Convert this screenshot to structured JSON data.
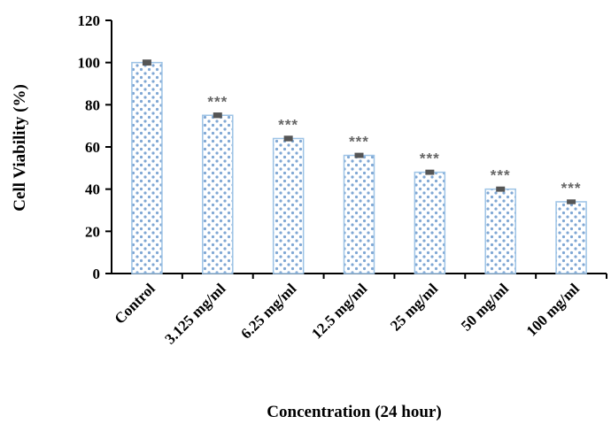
{
  "chart_data": {
    "type": "bar",
    "categories": [
      "Control",
      "3.125 mg/ml",
      "6.25 mg/ml",
      "12.5 mg/ml",
      "25 mg/ml",
      "50 mg/ml",
      "100 mg/ml"
    ],
    "values": [
      100,
      75,
      64,
      56,
      48,
      40,
      34
    ],
    "errors": [
      0.8,
      0.7,
      0.7,
      0.6,
      0.6,
      0.6,
      0.5
    ],
    "annotations": [
      "",
      "***",
      "***",
      "***",
      "***",
      "***",
      "***"
    ],
    "xlabel": "Concentration (24 hour)",
    "ylabel": "Cell Viability (%)",
    "ylim": [
      0,
      120
    ],
    "yticks": [
      0,
      20,
      40,
      60,
      80,
      100,
      120
    ],
    "grid": false,
    "colors": {
      "bar_fill": "#ffffff",
      "bar_stroke": "#9dc3e6",
      "dots": "#7fa7d4",
      "error_bar": "#555555",
      "axis": "#000000"
    }
  }
}
